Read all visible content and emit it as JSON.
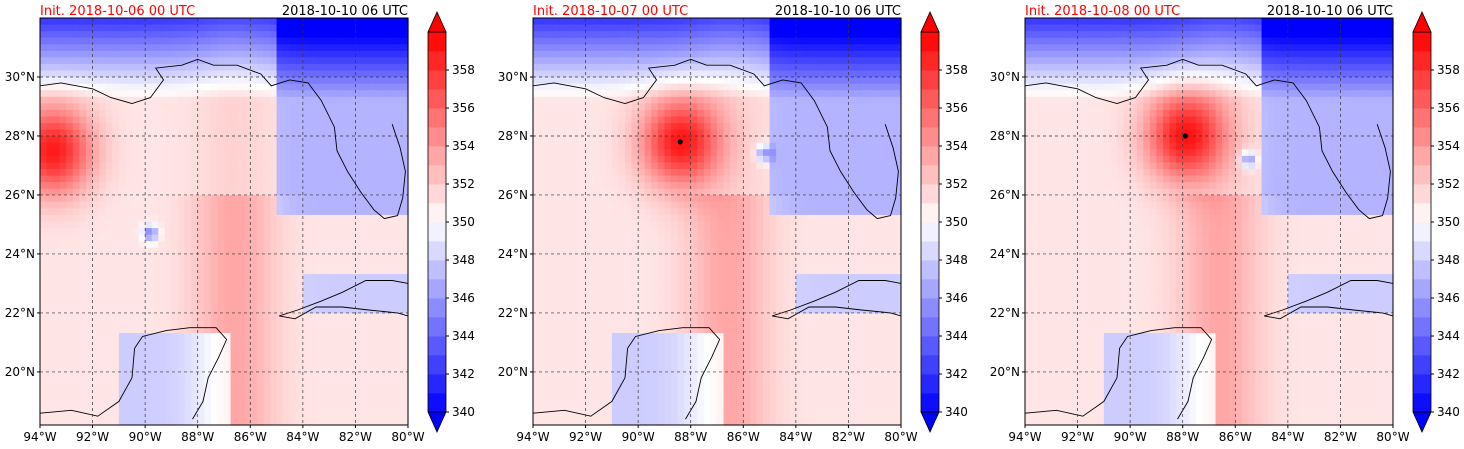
{
  "panels": [
    {
      "init_label": "Init. 2018-10-06 00 UTC",
      "valid_label": "2018-10-10 06 UTC",
      "storm_center": null,
      "warm_core_lon": -93.5,
      "warm_core_lat": 27.5,
      "cool_spot_lon": -89.8,
      "cool_spot_lat": 24.7
    },
    {
      "init_label": "Init. 2018-10-07 00 UTC",
      "valid_label": "2018-10-10 06 UTC",
      "storm_center": {
        "lon": -88.4,
        "lat": 27.8
      },
      "warm_core_lon": -88.4,
      "warm_core_lat": 27.8,
      "cool_spot_lon": -85.2,
      "cool_spot_lat": 27.4
    },
    {
      "init_label": "Init. 2018-10-08 00 UTC",
      "valid_label": "2018-10-10 06 UTC",
      "storm_center": {
        "lon": -87.9,
        "lat": 28.0
      },
      "warm_core_lon": -87.9,
      "warm_core_lat": 28.0,
      "cool_spot_lon": -85.5,
      "cool_spot_lat": 27.2
    }
  ],
  "map": {
    "lon_range": [
      -94,
      -80
    ],
    "lat_range": [
      18.2,
      32.0
    ],
    "lon_ticks": [
      -94,
      -92,
      -90,
      -88,
      -86,
      -84,
      -82,
      -80
    ],
    "lon_tick_labels": [
      "94°W",
      "92°W",
      "90°W",
      "88°W",
      "86°W",
      "84°W",
      "82°W",
      "80°W"
    ],
    "lat_ticks": [
      20,
      22,
      24,
      26,
      28,
      30
    ],
    "lat_tick_labels": [
      "20°N",
      "22°N",
      "24°N",
      "26°N",
      "28°N",
      "30°N"
    ],
    "grid": "dashed"
  },
  "colorbar": {
    "min": 340,
    "max": 360,
    "step": 1,
    "tick_values": [
      340,
      342,
      344,
      346,
      348,
      350,
      352,
      354,
      356,
      358
    ],
    "tick_labels": [
      "340",
      "342",
      "344",
      "346",
      "348",
      "350",
      "352",
      "354",
      "356",
      "358"
    ],
    "extend": "both",
    "low_color": "#0000ff",
    "mid_color": "#ffffff",
    "high_color": "#ff0000"
  },
  "colors": {
    "init_label": "#ff0000",
    "coastline": "#000000",
    "grid": "#333333"
  }
}
